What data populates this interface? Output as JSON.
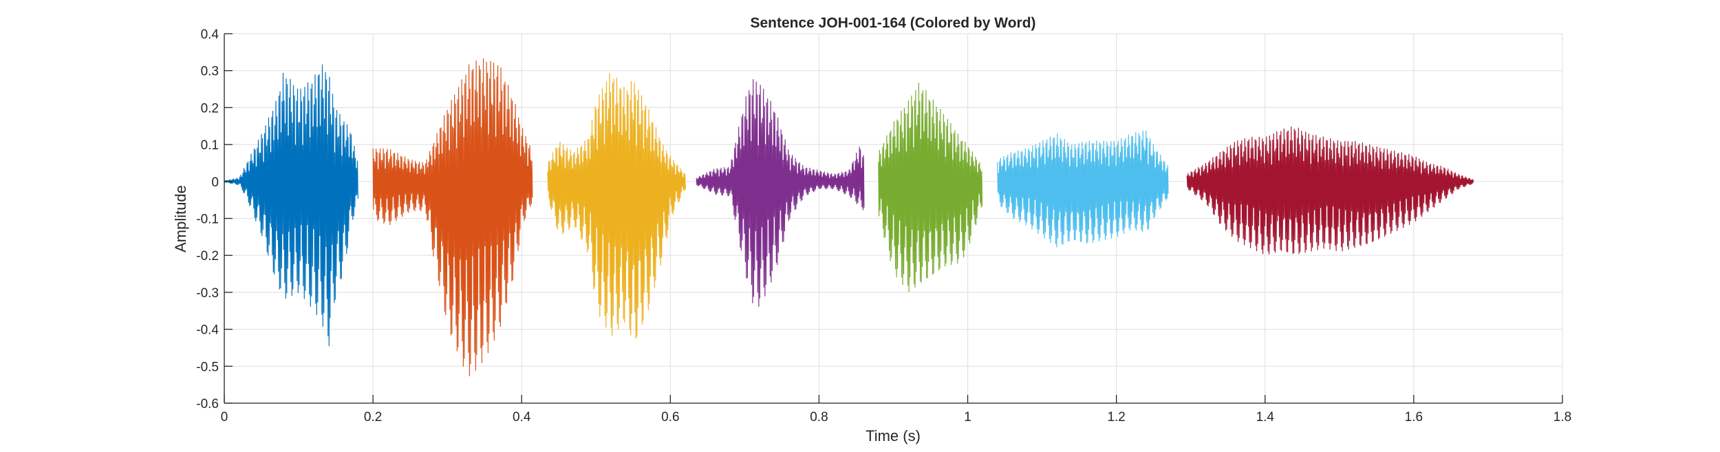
{
  "chart_data": {
    "type": "line",
    "title": "Sentence JOH-001-164 (Colored by Word)",
    "xlabel": "Time (s)",
    "ylabel": "Amplitude",
    "xlim": [
      0,
      1.8
    ],
    "ylim": [
      -0.6,
      0.4
    ],
    "xticks": [
      0,
      0.2,
      0.4,
      0.6,
      0.8,
      1,
      1.2,
      1.4,
      1.6,
      1.8
    ],
    "xtick_labels": [
      "0",
      "0.2",
      "0.4",
      "0.6",
      "0.8",
      "1",
      "1.2",
      "1.4",
      "1.6",
      "1.8"
    ],
    "yticks": [
      -0.6,
      -0.5,
      -0.4,
      -0.3,
      -0.2,
      -0.1,
      0,
      0.1,
      0.2,
      0.3,
      0.4
    ],
    "ytick_labels": [
      "-0.6",
      "-0.5",
      "-0.4",
      "-0.3",
      "-0.2",
      "-0.1",
      "0",
      "0.1",
      "0.2",
      "0.3",
      "0.4"
    ],
    "grid": true,
    "series": [
      {
        "color": "#0072BD",
        "x": [
          0.0,
          0.02,
          0.03,
          0.05,
          0.07,
          0.08,
          0.1,
          0.12,
          0.13,
          0.14,
          0.15,
          0.16,
          0.17,
          0.18
        ],
        "upper": [
          0.002,
          0.01,
          0.05,
          0.13,
          0.22,
          0.3,
          0.25,
          0.28,
          0.32,
          0.3,
          0.2,
          0.17,
          0.14,
          0.05
        ],
        "lower": [
          -0.002,
          -0.01,
          -0.05,
          -0.15,
          -0.28,
          -0.32,
          -0.3,
          -0.35,
          -0.38,
          -0.45,
          -0.3,
          -0.25,
          -0.12,
          -0.05
        ]
      },
      {
        "color": "#D95319",
        "x": [
          0.2,
          0.22,
          0.25,
          0.27,
          0.28,
          0.3,
          0.32,
          0.33,
          0.35,
          0.37,
          0.39,
          0.4,
          0.415
        ],
        "upper": [
          0.09,
          0.09,
          0.06,
          0.05,
          0.1,
          0.2,
          0.28,
          0.32,
          0.335,
          0.32,
          0.22,
          0.15,
          0.08
        ],
        "lower": [
          -0.1,
          -0.12,
          -0.08,
          -0.08,
          -0.2,
          -0.4,
          -0.5,
          -0.53,
          -0.48,
          -0.4,
          -0.25,
          -0.12,
          -0.05
        ]
      },
      {
        "color": "#EDB120",
        "x": [
          0.435,
          0.45,
          0.47,
          0.49,
          0.5,
          0.52,
          0.54,
          0.55,
          0.57,
          0.59,
          0.6,
          0.62
        ],
        "upper": [
          0.05,
          0.11,
          0.08,
          0.12,
          0.22,
          0.3,
          0.25,
          0.28,
          0.2,
          0.1,
          0.07,
          0.02
        ],
        "lower": [
          -0.05,
          -0.15,
          -0.12,
          -0.2,
          -0.35,
          -0.42,
          -0.38,
          -0.45,
          -0.35,
          -0.2,
          -0.1,
          -0.02
        ]
      },
      {
        "color": "#7E2F8E",
        "x": [
          0.635,
          0.66,
          0.68,
          0.7,
          0.71,
          0.72,
          0.74,
          0.76,
          0.78,
          0.8,
          0.82,
          0.84,
          0.855,
          0.86
        ],
        "upper": [
          0.01,
          0.035,
          0.04,
          0.22,
          0.28,
          0.27,
          0.2,
          0.08,
          0.04,
          0.03,
          0.02,
          0.03,
          0.1,
          0.07
        ],
        "lower": [
          -0.01,
          -0.035,
          -0.04,
          -0.25,
          -0.33,
          -0.34,
          -0.25,
          -0.1,
          -0.04,
          -0.02,
          -0.02,
          -0.04,
          -0.07,
          -0.08
        ]
      },
      {
        "color": "#77AC30",
        "x": [
          0.88,
          0.9,
          0.92,
          0.935,
          0.95,
          0.97,
          0.99,
          1.0,
          1.02
        ],
        "upper": [
          0.08,
          0.16,
          0.22,
          0.27,
          0.23,
          0.18,
          0.12,
          0.1,
          0.04
        ],
        "lower": [
          -0.1,
          -0.25,
          -0.3,
          -0.28,
          -0.26,
          -0.23,
          -0.22,
          -0.18,
          -0.06
        ]
      },
      {
        "color": "#4DBEEE",
        "x": [
          1.04,
          1.06,
          1.08,
          1.1,
          1.12,
          1.14,
          1.16,
          1.18,
          1.2,
          1.22,
          1.24,
          1.25,
          1.27
        ],
        "upper": [
          0.06,
          0.08,
          0.09,
          0.11,
          0.13,
          0.1,
          0.11,
          0.11,
          0.11,
          0.13,
          0.14,
          0.1,
          0.04
        ],
        "lower": [
          -0.06,
          -0.1,
          -0.12,
          -0.15,
          -0.18,
          -0.16,
          -0.17,
          -0.16,
          -0.15,
          -0.13,
          -0.14,
          -0.1,
          -0.04
        ]
      },
      {
        "color": "#A2142F",
        "x": [
          1.295,
          1.32,
          1.34,
          1.36,
          1.38,
          1.4,
          1.42,
          1.44,
          1.46,
          1.48,
          1.5,
          1.52,
          1.54,
          1.56,
          1.58,
          1.6,
          1.62,
          1.64,
          1.66,
          1.68
        ],
        "upper": [
          0.02,
          0.05,
          0.08,
          0.11,
          0.12,
          0.12,
          0.14,
          0.15,
          0.13,
          0.12,
          0.11,
          0.11,
          0.1,
          0.09,
          0.08,
          0.07,
          0.05,
          0.04,
          0.02,
          0.005
        ],
        "lower": [
          -0.02,
          -0.06,
          -0.12,
          -0.16,
          -0.18,
          -0.2,
          -0.19,
          -0.2,
          -0.19,
          -0.18,
          -0.19,
          -0.18,
          -0.17,
          -0.15,
          -0.13,
          -0.11,
          -0.08,
          -0.05,
          -0.02,
          -0.005
        ]
      }
    ]
  }
}
